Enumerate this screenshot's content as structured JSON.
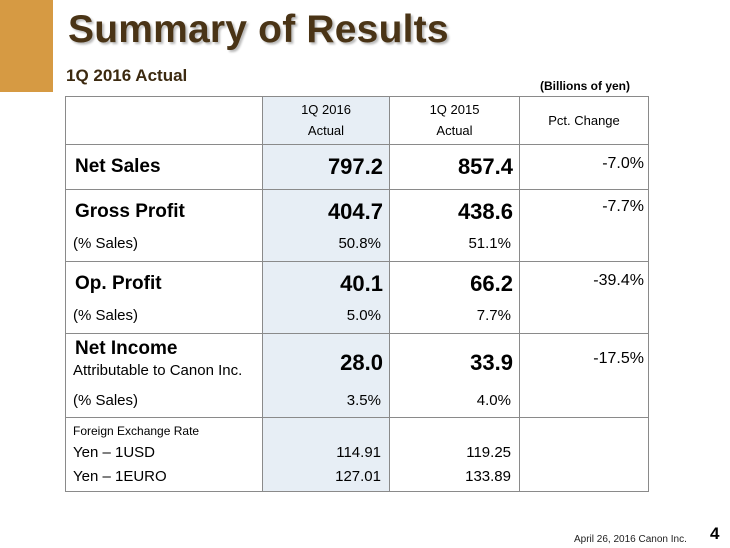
{
  "title": "Summary of Results",
  "subtitle": "1Q 2016 Actual",
  "units": "(Billions of yen)",
  "colors": {
    "accent": "#d69a43",
    "title": "#4a3416",
    "highlight": "#e7eef5"
  },
  "table": {
    "header": {
      "col2016_line1": "1Q 2016",
      "col2016_line2": "Actual",
      "col2015_line1": "1Q 2015",
      "col2015_line2": "Actual",
      "pct": "Pct.  Change"
    },
    "net_sales": {
      "label": "Net Sales",
      "v2016": "797.2",
      "v2015": "857.4",
      "pct": "-7.0%"
    },
    "gross_profit": {
      "label": "Gross Profit",
      "v2016": "404.7",
      "v2015": "438.6",
      "pct": "-7.7%",
      "sales_label": "(% Sales)",
      "s2016": "50.8%",
      "s2015": "51.1%"
    },
    "op_profit": {
      "label": "Op. Profit",
      "v2016": "40.1",
      "v2015": "66.2",
      "pct": "-39.4%",
      "sales_label": "(% Sales)",
      "s2016": "5.0%",
      "s2015": "7.7%"
    },
    "net_income": {
      "label": "Net Income",
      "sub_label": "Attributable to Canon Inc.",
      "v2016": "28.0",
      "v2015": "33.9",
      "pct": "-17.5%",
      "sales_label": "(% Sales)",
      "s2016": "3.5%",
      "s2015": "4.0%"
    },
    "fx": {
      "title": "Foreign Exchange Rate",
      "usd_label": "Yen – 1USD",
      "usd_2016": "114.91",
      "usd_2015": "119.25",
      "euro_label": "Yen – 1EURO",
      "euro_2016": "127.01",
      "euro_2015": "133.89"
    }
  },
  "footer": "April 26, 2016 Canon Inc.",
  "page_number": "4"
}
